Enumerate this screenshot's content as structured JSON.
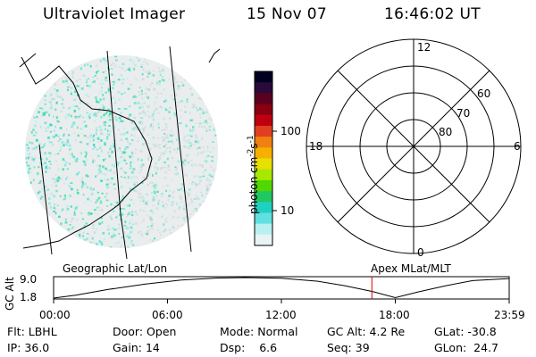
{
  "header": {
    "title": "Ultraviolet Imager",
    "date": "15 Nov 07",
    "time": "16:46:02 UT"
  },
  "colorbar": {
    "label": "photon cm",
    "label_sup1": "-2",
    "label_s": "s",
    "label_sup2": "-1",
    "ticks": [
      {
        "label": "100",
        "value": 100
      },
      {
        "label": "10",
        "value": 10
      }
    ],
    "colors": [
      "#000020",
      "#2a0a3a",
      "#5a0020",
      "#8a0010",
      "#c00010",
      "#e04020",
      "#f08010",
      "#f8b000",
      "#e8e000",
      "#a8e800",
      "#50d800",
      "#20c860",
      "#20d0c0",
      "#60e0e0",
      "#b8f0f0",
      "#e8f4f4"
    ]
  },
  "polar": {
    "lat_labels": [
      {
        "label": "60"
      },
      {
        "label": "70"
      },
      {
        "label": "80"
      }
    ],
    "mlt_labels": {
      "top": "12",
      "left": "18",
      "right": "6",
      "bottom": "0"
    }
  },
  "timeline": {
    "left_label": "Geographic Lat/Lon",
    "right_label": "Apex MLat/MLT",
    "axis_label": "GC Alt",
    "ymax": "9.0",
    "ymin": "1.8",
    "x_ticks": [
      "00:00",
      "06:00",
      "12:00",
      "18:00",
      "23:59"
    ],
    "marker_time_fraction": 0.6986,
    "marker_color": "#e00000"
  },
  "info": {
    "flt_label": "Flt:",
    "flt_value": "LBHL",
    "ip_label": "IP:",
    "ip_value": "36.0",
    "door_label": "Door:",
    "door_value": "Open",
    "gain_label": "Gain:",
    "gain_value": "14",
    "mode_label": "Mode:",
    "mode_value": "Normal",
    "dsp_label": "Dsp:",
    "dsp_value": "6.6",
    "gcalt_label": "GC Alt:",
    "gcalt_value": "4.2 Re",
    "seq_label": "Seq:",
    "seq_value": "39",
    "glat_label": "GLat:",
    "glat_value": "-30.8",
    "glon_label": "GLon:",
    "glon_value": "24.7"
  }
}
